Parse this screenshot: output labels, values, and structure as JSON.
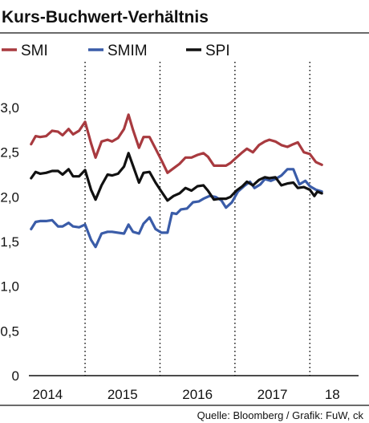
{
  "title": "Kurs-Buchwert-Verhältnis",
  "source": "Quelle: Bloomberg / Grafik: FuW, ck",
  "chart_data": {
    "type": "line",
    "title": "Kurs-Buchwert-Verhältnis",
    "xlabel": "",
    "ylabel": "",
    "ylim": [
      0,
      3.0
    ],
    "yticks": [
      0,
      0.5,
      1.0,
      1.5,
      2.0,
      2.5,
      3.0
    ],
    "ytick_labels": [
      "0",
      "0,5",
      "1,0",
      "1,5",
      "2,0",
      "2,5",
      "3,0"
    ],
    "xlim": [
      2013.75,
      2018.15
    ],
    "year_dividers": [
      2014.5,
      2015.5,
      2016.5,
      2017.5
    ],
    "x_labels": [
      {
        "x": 2014.0,
        "label": "2014"
      },
      {
        "x": 2015.0,
        "label": "2015"
      },
      {
        "x": 2016.0,
        "label": "2016"
      },
      {
        "x": 2017.0,
        "label": "2017"
      },
      {
        "x": 2017.8,
        "label": "18"
      }
    ],
    "grid": "vertical dotted year dividers",
    "legend_position": "top",
    "series": [
      {
        "name": "SMI",
        "color": "#a83a3f",
        "points": [
          [
            2013.78,
            2.59
          ],
          [
            2013.84,
            2.68
          ],
          [
            2013.9,
            2.67
          ],
          [
            2013.98,
            2.68
          ],
          [
            2014.06,
            2.74
          ],
          [
            2014.14,
            2.73
          ],
          [
            2014.2,
            2.69
          ],
          [
            2014.28,
            2.76
          ],
          [
            2014.34,
            2.7
          ],
          [
            2014.42,
            2.74
          ],
          [
            2014.5,
            2.84
          ],
          [
            2014.58,
            2.6
          ],
          [
            2014.64,
            2.44
          ],
          [
            2014.72,
            2.62
          ],
          [
            2014.8,
            2.64
          ],
          [
            2014.86,
            2.62
          ],
          [
            2014.94,
            2.66
          ],
          [
            2015.02,
            2.76
          ],
          [
            2015.08,
            2.92
          ],
          [
            2015.14,
            2.75
          ],
          [
            2015.22,
            2.55
          ],
          [
            2015.28,
            2.67
          ],
          [
            2015.36,
            2.67
          ],
          [
            2015.44,
            2.54
          ],
          [
            2015.52,
            2.41
          ],
          [
            2015.6,
            2.27
          ],
          [
            2015.68,
            2.32
          ],
          [
            2015.76,
            2.37
          ],
          [
            2015.84,
            2.44
          ],
          [
            2015.92,
            2.44
          ],
          [
            2016.0,
            2.47
          ],
          [
            2016.08,
            2.49
          ],
          [
            2016.14,
            2.45
          ],
          [
            2016.22,
            2.35
          ],
          [
            2016.3,
            2.35
          ],
          [
            2016.38,
            2.35
          ],
          [
            2016.44,
            2.38
          ],
          [
            2016.52,
            2.44
          ],
          [
            2016.6,
            2.5
          ],
          [
            2016.66,
            2.54
          ],
          [
            2016.74,
            2.5
          ],
          [
            2016.82,
            2.58
          ],
          [
            2016.9,
            2.62
          ],
          [
            2016.96,
            2.64
          ],
          [
            2017.04,
            2.62
          ],
          [
            2017.12,
            2.58
          ],
          [
            2017.2,
            2.56
          ],
          [
            2017.28,
            2.59
          ],
          [
            2017.34,
            2.61
          ],
          [
            2017.42,
            2.5
          ],
          [
            2017.5,
            2.48
          ],
          [
            2017.58,
            2.39
          ],
          [
            2017.66,
            2.36
          ]
        ]
      },
      {
        "name": "SMIM",
        "color": "#3a5ca8",
        "points": [
          [
            2013.78,
            1.64
          ],
          [
            2013.84,
            1.72
          ],
          [
            2013.9,
            1.73
          ],
          [
            2013.98,
            1.73
          ],
          [
            2014.06,
            1.74
          ],
          [
            2014.14,
            1.67
          ],
          [
            2014.2,
            1.67
          ],
          [
            2014.28,
            1.71
          ],
          [
            2014.34,
            1.67
          ],
          [
            2014.42,
            1.66
          ],
          [
            2014.5,
            1.69
          ],
          [
            2014.58,
            1.52
          ],
          [
            2014.64,
            1.44
          ],
          [
            2014.72,
            1.59
          ],
          [
            2014.8,
            1.61
          ],
          [
            2014.86,
            1.61
          ],
          [
            2014.94,
            1.6
          ],
          [
            2015.02,
            1.59
          ],
          [
            2015.08,
            1.69
          ],
          [
            2015.14,
            1.61
          ],
          [
            2015.22,
            1.59
          ],
          [
            2015.28,
            1.7
          ],
          [
            2015.36,
            1.77
          ],
          [
            2015.44,
            1.64
          ],
          [
            2015.52,
            1.6
          ],
          [
            2015.6,
            1.6
          ],
          [
            2015.66,
            1.82
          ],
          [
            2015.72,
            1.81
          ],
          [
            2015.78,
            1.86
          ],
          [
            2015.86,
            1.87
          ],
          [
            2015.94,
            1.94
          ],
          [
            2016.02,
            1.95
          ],
          [
            2016.08,
            1.98
          ],
          [
            2016.16,
            2.01
          ],
          [
            2016.24,
            2.0
          ],
          [
            2016.32,
            1.96
          ],
          [
            2016.38,
            1.88
          ],
          [
            2016.46,
            1.94
          ],
          [
            2016.54,
            2.06
          ],
          [
            2016.62,
            2.12
          ],
          [
            2016.7,
            2.17
          ],
          [
            2016.76,
            2.1
          ],
          [
            2016.84,
            2.14
          ],
          [
            2016.9,
            2.2
          ],
          [
            2016.98,
            2.18
          ],
          [
            2017.06,
            2.21
          ],
          [
            2017.12,
            2.24
          ],
          [
            2017.2,
            2.31
          ],
          [
            2017.28,
            2.31
          ],
          [
            2017.36,
            2.14
          ],
          [
            2017.44,
            2.18
          ],
          [
            2017.5,
            2.12
          ],
          [
            2017.58,
            2.08
          ],
          [
            2017.66,
            2.06
          ]
        ]
      },
      {
        "name": "SPI",
        "color": "#111111",
        "points": [
          [
            2013.78,
            2.21
          ],
          [
            2013.84,
            2.28
          ],
          [
            2013.9,
            2.26
          ],
          [
            2013.98,
            2.27
          ],
          [
            2014.06,
            2.29
          ],
          [
            2014.14,
            2.29
          ],
          [
            2014.2,
            2.25
          ],
          [
            2014.28,
            2.31
          ],
          [
            2014.34,
            2.23
          ],
          [
            2014.42,
            2.23
          ],
          [
            2014.5,
            2.3
          ],
          [
            2014.58,
            2.08
          ],
          [
            2014.64,
            1.97
          ],
          [
            2014.72,
            2.13
          ],
          [
            2014.8,
            2.25
          ],
          [
            2014.86,
            2.24
          ],
          [
            2014.94,
            2.26
          ],
          [
            2015.02,
            2.34
          ],
          [
            2015.08,
            2.49
          ],
          [
            2015.14,
            2.35
          ],
          [
            2015.22,
            2.16
          ],
          [
            2015.28,
            2.27
          ],
          [
            2015.36,
            2.28
          ],
          [
            2015.44,
            2.16
          ],
          [
            2015.52,
            2.06
          ],
          [
            2015.6,
            1.96
          ],
          [
            2015.68,
            2.01
          ],
          [
            2015.76,
            2.04
          ],
          [
            2015.84,
            2.1
          ],
          [
            2015.92,
            2.07
          ],
          [
            2016.0,
            2.12
          ],
          [
            2016.08,
            2.13
          ],
          [
            2016.14,
            2.07
          ],
          [
            2016.22,
            1.97
          ],
          [
            2016.3,
            1.98
          ],
          [
            2016.38,
            1.98
          ],
          [
            2016.44,
            2.0
          ],
          [
            2016.52,
            2.07
          ],
          [
            2016.6,
            2.12
          ],
          [
            2016.66,
            2.17
          ],
          [
            2016.74,
            2.13
          ],
          [
            2016.82,
            2.19
          ],
          [
            2016.9,
            2.22
          ],
          [
            2016.96,
            2.21
          ],
          [
            2017.04,
            2.22
          ],
          [
            2017.12,
            2.13
          ],
          [
            2017.2,
            2.15
          ],
          [
            2017.28,
            2.16
          ],
          [
            2017.34,
            2.1
          ],
          [
            2017.42,
            2.11
          ],
          [
            2017.5,
            2.08
          ],
          [
            2017.56,
            2.01
          ],
          [
            2017.6,
            2.06
          ],
          [
            2017.66,
            2.04
          ]
        ]
      }
    ]
  }
}
